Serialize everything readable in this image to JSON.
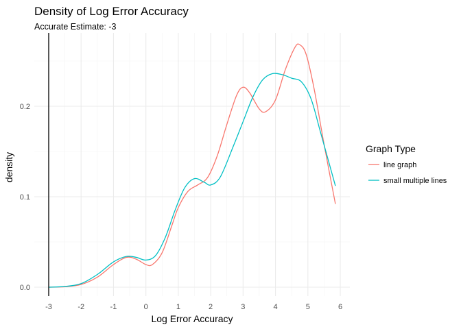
{
  "chart_data": {
    "type": "line",
    "title": "Density of Log Error Accuracy",
    "subtitle": "Accurate Estimate: -3",
    "xlabel": "Log Error Accuracy",
    "ylabel": "density",
    "xlim": [
      -3,
      6
    ],
    "ylim": [
      0,
      0.27
    ],
    "x_ticks": [
      -3,
      -2,
      -1,
      0,
      1,
      2,
      3,
      4,
      5,
      6
    ],
    "x_tick_labels": [
      "-3",
      "-2",
      "-1",
      "0",
      "1",
      "2",
      "3",
      "4",
      "5",
      "6"
    ],
    "y_ticks": [
      0.0,
      0.1,
      0.2
    ],
    "y_tick_labels": [
      "0.0",
      "0.1",
      "0.2"
    ],
    "grid": true,
    "reference_line": {
      "x": -3,
      "color": "#000000"
    },
    "legend": {
      "title": "Graph Type",
      "position": "right"
    },
    "series": [
      {
        "name": "line graph",
        "color": "#F8766D",
        "points": [
          [
            -3.0,
            0.0
          ],
          [
            -2.5,
            0.0005
          ],
          [
            -2.0,
            0.003
          ],
          [
            -1.5,
            0.011
          ],
          [
            -1.0,
            0.025
          ],
          [
            -0.6,
            0.033
          ],
          [
            -0.3,
            0.031
          ],
          [
            0.0,
            0.025
          ],
          [
            0.2,
            0.025
          ],
          [
            0.5,
            0.038
          ],
          [
            0.8,
            0.068
          ],
          [
            1.0,
            0.088
          ],
          [
            1.3,
            0.106
          ],
          [
            1.6,
            0.113
          ],
          [
            1.9,
            0.121
          ],
          [
            2.2,
            0.145
          ],
          [
            2.5,
            0.18
          ],
          [
            2.8,
            0.212
          ],
          [
            3.0,
            0.221
          ],
          [
            3.2,
            0.215
          ],
          [
            3.5,
            0.197
          ],
          [
            3.7,
            0.194
          ],
          [
            4.0,
            0.207
          ],
          [
            4.3,
            0.24
          ],
          [
            4.6,
            0.265
          ],
          [
            4.75,
            0.268
          ],
          [
            4.95,
            0.257
          ],
          [
            5.2,
            0.218
          ],
          [
            5.5,
            0.158
          ],
          [
            5.85,
            0.092
          ]
        ]
      },
      {
        "name": "small multiple lines",
        "color": "#00BFC4",
        "points": [
          [
            -3.0,
            0.0
          ],
          [
            -2.5,
            0.0008
          ],
          [
            -2.0,
            0.004
          ],
          [
            -1.5,
            0.014
          ],
          [
            -1.0,
            0.028
          ],
          [
            -0.6,
            0.034
          ],
          [
            -0.3,
            0.033
          ],
          [
            0.0,
            0.03
          ],
          [
            0.3,
            0.035
          ],
          [
            0.6,
            0.055
          ],
          [
            0.9,
            0.085
          ],
          [
            1.2,
            0.11
          ],
          [
            1.5,
            0.12
          ],
          [
            1.8,
            0.116
          ],
          [
            2.0,
            0.113
          ],
          [
            2.3,
            0.122
          ],
          [
            2.7,
            0.156
          ],
          [
            3.0,
            0.183
          ],
          [
            3.3,
            0.21
          ],
          [
            3.6,
            0.229
          ],
          [
            3.9,
            0.236
          ],
          [
            4.2,
            0.235
          ],
          [
            4.5,
            0.231
          ],
          [
            4.8,
            0.227
          ],
          [
            5.1,
            0.208
          ],
          [
            5.4,
            0.17
          ],
          [
            5.85,
            0.112
          ]
        ]
      }
    ]
  }
}
